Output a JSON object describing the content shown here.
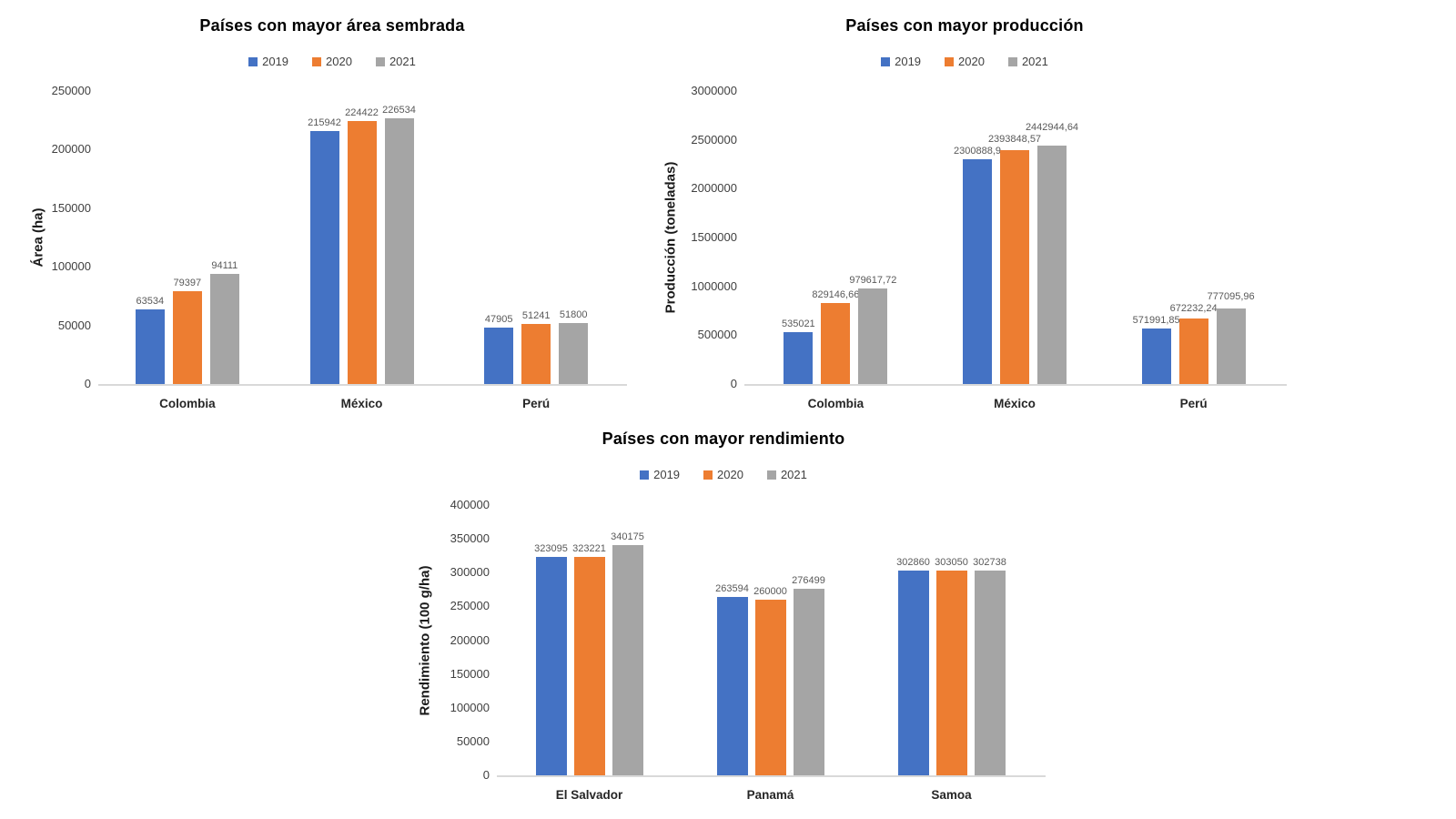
{
  "colors": {
    "series": [
      "#4472C4",
      "#ED7D31",
      "#A5A5A5"
    ],
    "axis_line": "#D9D9D9",
    "tick_text": "#404040",
    "data_label_text": "#595959",
    "category_text": "#262626",
    "legend_text": "#404040",
    "background": "#FFFFFF"
  },
  "chart_data": [
    {
      "type": "bar",
      "title": "Países con mayor área sembrada",
      "ylabel": "Área (ha)",
      "xlabel": "",
      "legend": [
        "2019",
        "2020",
        "2021"
      ],
      "legend_position": "top",
      "grid": false,
      "categories": [
        "Colombia",
        "México",
        "Perú"
      ],
      "series": [
        {
          "name": "2019",
          "values": [
            63534,
            215942,
            47905
          ],
          "labels": [
            "63534",
            "215942",
            "47905"
          ]
        },
        {
          "name": "2020",
          "values": [
            79397,
            224422,
            51241
          ],
          "labels": [
            "79397",
            "224422",
            "51241"
          ]
        },
        {
          "name": "2021",
          "values": [
            94111,
            226534,
            51800
          ],
          "labels": [
            "94111",
            "226534",
            "51800"
          ]
        }
      ],
      "ylim": [
        0,
        250000
      ],
      "ytick_step": 50000,
      "ytick_labels": [
        "0",
        "50000",
        "100000",
        "150000",
        "200000",
        "250000"
      ]
    },
    {
      "type": "bar",
      "title": "Países con mayor producción",
      "ylabel": "Producción (toneladas)",
      "xlabel": "",
      "legend": [
        "2019",
        "2020",
        "2021"
      ],
      "legend_position": "top",
      "grid": false,
      "categories": [
        "Colombia",
        "México",
        "Perú"
      ],
      "series": [
        {
          "name": "2019",
          "values": [
            535021,
            2300888.9,
            571991.85
          ],
          "labels": [
            "535021",
            "2300888,9",
            "571991,85"
          ]
        },
        {
          "name": "2020",
          "values": [
            829146.66,
            2393848.57,
            672232.24
          ],
          "labels": [
            "829146,66",
            "2393848,57",
            "672232,24"
          ]
        },
        {
          "name": "2021",
          "values": [
            979617.72,
            2442944.64,
            777095.96
          ],
          "labels": [
            "979617,72",
            "2442944,64",
            "777095,96"
          ]
        }
      ],
      "ylim": [
        0,
        3000000
      ],
      "ytick_step": 500000,
      "ytick_labels": [
        "0",
        "500000",
        "1000000",
        "1500000",
        "2000000",
        "2500000",
        "3000000"
      ]
    },
    {
      "type": "bar",
      "title": "Países con mayor rendimiento",
      "ylabel": "Rendimiento (100 g/ha)",
      "xlabel": "",
      "legend": [
        "2019",
        "2020",
        "2021"
      ],
      "legend_position": "top",
      "grid": false,
      "categories": [
        "El Salvador",
        "Panamá",
        "Samoa"
      ],
      "series": [
        {
          "name": "2019",
          "values": [
            323095,
            263594,
            302860
          ],
          "labels": [
            "323095",
            "263594",
            "302860"
          ]
        },
        {
          "name": "2020",
          "values": [
            323221,
            260000,
            303050
          ],
          "labels": [
            "323221",
            "260000",
            "303050"
          ]
        },
        {
          "name": "2021",
          "values": [
            340175,
            276499,
            302738
          ],
          "labels": [
            "340175",
            "276499",
            "302738"
          ]
        }
      ],
      "ylim": [
        0,
        400000
      ],
      "ytick_step": 50000,
      "ytick_labels": [
        "0",
        "50000",
        "100000",
        "150000",
        "200000",
        "250000",
        "300000",
        "350000",
        "400000"
      ]
    }
  ]
}
